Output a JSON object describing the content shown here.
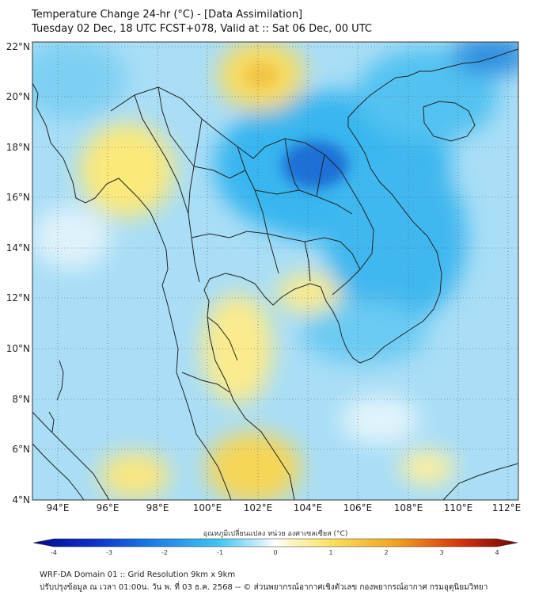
{
  "header": {
    "line1": "Temperature Change 24-hr (°C) - [Data Assimilation]",
    "line2": "Tuesday 02 Dec, 18 UTC FCST+078, Valid at :: Sat 06 Dec, 00 UTC"
  },
  "map": {
    "lon_ticks": [
      "94°E",
      "96°E",
      "98°E",
      "100°E",
      "102°E",
      "104°E",
      "106°E",
      "108°E",
      "110°E",
      "112°E"
    ],
    "lat_ticks": [
      "22°N",
      "20°N",
      "18°N",
      "16°N",
      "14°N",
      "12°N",
      "10°N",
      "8°N",
      "6°N",
      "4°N"
    ],
    "colors": {
      "base": "#a9def6",
      "cold": "#2fb0ec",
      "deep": "#1a6fd6",
      "warm": "#fbe97a",
      "warmer": "#f5d452",
      "coast": "#222222"
    }
  },
  "colorbar": {
    "title": "อุณหภูมิเปลี่ยนแปลง หน่วย องศาเซลเซียส (°C)",
    "ticks": [
      "-4",
      "-3",
      "-2",
      "-1",
      "0",
      "1",
      "2",
      "3",
      "4"
    ]
  },
  "footer": {
    "line1": "WRF-DA Domain 01 :: Grid Resolution 9km x 9km",
    "line2": "ปรับปรุงข้อมูล ณ เวลา 01:00น. วัน พ. ที่ 03 ธ.ค. 2568 -- © ส่วนพยากรณ์อากาศเชิงตัวเลข กองพยากรณ์อากาศ กรมอุตุนิยมวิทยา"
  }
}
